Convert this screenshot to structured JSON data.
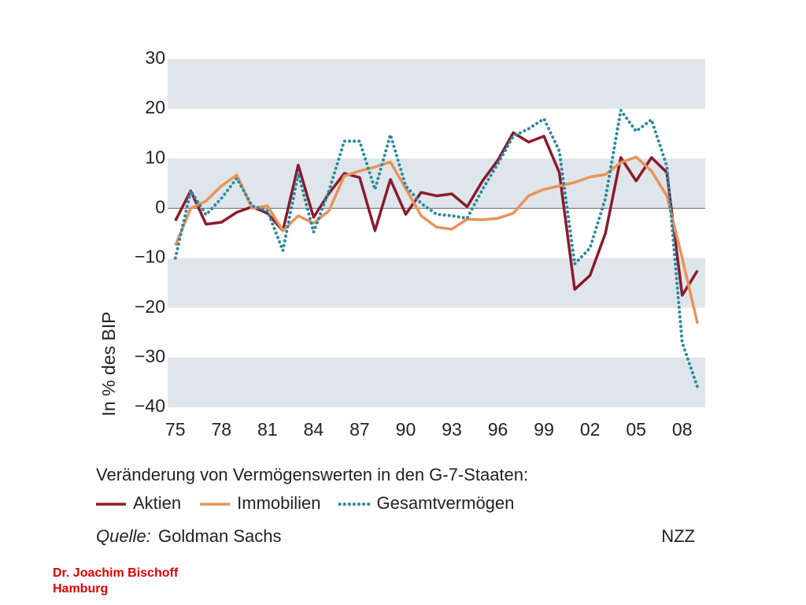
{
  "chart_data": {
    "type": "line",
    "ylabel": "In % des BIP",
    "legend_title": "Veränderung von Vermögenswerten in den G-7-Staaten:",
    "source_label": "Quelle:",
    "source": "Goldman Sachs",
    "brand": "NZZ",
    "x": [
      1975,
      1976,
      1977,
      1978,
      1979,
      1980,
      1981,
      1982,
      1983,
      1984,
      1985,
      1986,
      1987,
      1988,
      1989,
      1990,
      1991,
      1992,
      1993,
      1994,
      1995,
      1996,
      1997,
      1998,
      1999,
      2000,
      2001,
      2002,
      2003,
      2004,
      2005,
      2006,
      2007,
      2008,
      2009
    ],
    "series": [
      {
        "name": "Aktien",
        "color": "#8b1a2e",
        "linestyle": "solid",
        "values": [
          -2.5,
          3.5,
          -3.2,
          -2.8,
          -0.8,
          0.3,
          -1,
          -4.5,
          8.7,
          -1.8,
          3,
          7,
          6.2,
          -4.5,
          5.8,
          -1.2,
          3.2,
          2.5,
          2.9,
          0.3,
          5.5,
          9.7,
          15.2,
          13.3,
          14.5,
          7.2,
          -16.3,
          -13.5,
          -5,
          10.2,
          5.5,
          10.2,
          7.2,
          -17.5,
          -12.5
        ]
      },
      {
        "name": "Immobilien",
        "color": "#e8935a",
        "linestyle": "solid",
        "values": [
          -7.5,
          0,
          1.5,
          4.5,
          6.7,
          0,
          0.5,
          -4.5,
          -1.5,
          -3,
          -0.5,
          6.5,
          7.5,
          8.3,
          9.3,
          4,
          -1.5,
          -3.8,
          -4.2,
          -2.2,
          -2.3,
          -2,
          -1,
          2.5,
          3.8,
          4.5,
          5.2,
          6.3,
          6.8,
          9.2,
          10.3,
          7.5,
          2.5,
          -10,
          -23.2
        ]
      },
      {
        "name": "Gesamtvermögen",
        "color": "#2a8aa0",
        "linestyle": "dotted",
        "values": [
          -10,
          3.5,
          -1.3,
          2,
          6,
          0.5,
          -0.5,
          -8.5,
          7,
          -4.8,
          3.5,
          13.5,
          13.5,
          3.8,
          14.8,
          4.5,
          1,
          -1.2,
          -1.5,
          -2,
          3.8,
          9,
          14.5,
          16,
          18,
          11.5,
          -11.2,
          -8,
          2,
          19.7,
          15.5,
          17.8,
          8.5,
          -27,
          -36
        ]
      }
    ],
    "xlim": [
      1974.5,
      2009.5
    ],
    "xticks": [
      {
        "value": 1975,
        "label": "75"
      },
      {
        "value": 1978,
        "label": "78"
      },
      {
        "value": 1981,
        "label": "81"
      },
      {
        "value": 1984,
        "label": "84"
      },
      {
        "value": 1987,
        "label": "87"
      },
      {
        "value": 1990,
        "label": "90"
      },
      {
        "value": 1993,
        "label": "93"
      },
      {
        "value": 1996,
        "label": "96"
      },
      {
        "value": 1999,
        "label": "99"
      },
      {
        "value": 2002,
        "label": "02"
      },
      {
        "value": 2005,
        "label": "05"
      },
      {
        "value": 2008,
        "label": "08"
      }
    ],
    "ylim": [
      -40,
      30
    ],
    "yticks": [
      {
        "value": -40,
        "label": "−40"
      },
      {
        "value": -30,
        "label": "−30"
      },
      {
        "value": -20,
        "label": "−20"
      },
      {
        "value": -10,
        "label": "−10"
      },
      0,
      10,
      20,
      30
    ],
    "bands": true,
    "footer": [
      "Dr. Joachim Bischoff",
      "Hamburg"
    ]
  }
}
